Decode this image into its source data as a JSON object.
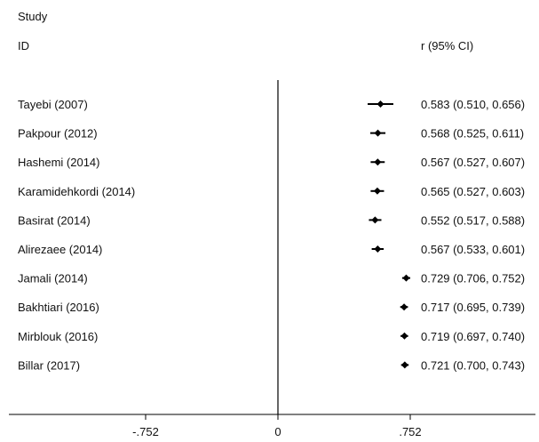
{
  "header": {
    "study_label": "Study",
    "id_label": "ID",
    "effect_label": "r (95% CI)"
  },
  "chart_data": {
    "type": "forest",
    "xlim": [
      -0.752,
      0.752
    ],
    "xticks": [
      {
        "value": -0.752,
        "label": "-.752"
      },
      {
        "value": 0,
        "label": "0"
      },
      {
        "value": 0.752,
        "label": ".752"
      }
    ],
    "null_line": 0,
    "studies": [
      {
        "label": "Tayebi  (2007)",
        "r": 0.583,
        "lo": 0.51,
        "hi": 0.656,
        "ci_text": "0.583 (0.510, 0.656)"
      },
      {
        "label": "Pakpour (2012)",
        "r": 0.568,
        "lo": 0.525,
        "hi": 0.611,
        "ci_text": "0.568 (0.525, 0.611)"
      },
      {
        "label": "Hashemi  (2014)",
        "r": 0.567,
        "lo": 0.527,
        "hi": 0.607,
        "ci_text": "0.567 (0.527, 0.607)"
      },
      {
        "label": "Karamidehkordi (2014)",
        "r": 0.565,
        "lo": 0.527,
        "hi": 0.603,
        "ci_text": "0.565 (0.527, 0.603)"
      },
      {
        "label": "Basirat (2014)",
        "r": 0.552,
        "lo": 0.517,
        "hi": 0.588,
        "ci_text": "0.552 (0.517, 0.588)"
      },
      {
        "label": "Alirezaee (2014)",
        "r": 0.567,
        "lo": 0.533,
        "hi": 0.601,
        "ci_text": "0.567 (0.533, 0.601)"
      },
      {
        "label": "Jamali (2014)",
        "r": 0.729,
        "lo": 0.706,
        "hi": 0.752,
        "ci_text": "0.729 (0.706, 0.752)"
      },
      {
        "label": "Bakhtiari (2016)",
        "r": 0.717,
        "lo": 0.695,
        "hi": 0.739,
        "ci_text": "0.717 (0.695, 0.739)"
      },
      {
        "label": "Mirblouk (2016)",
        "r": 0.719,
        "lo": 0.697,
        "hi": 0.74,
        "ci_text": "0.719 (0.697, 0.740)"
      },
      {
        "label": "Billar (2017)",
        "r": 0.721,
        "lo": 0.7,
        "hi": 0.743,
        "ci_text": "0.721 (0.700, 0.743)"
      }
    ]
  }
}
